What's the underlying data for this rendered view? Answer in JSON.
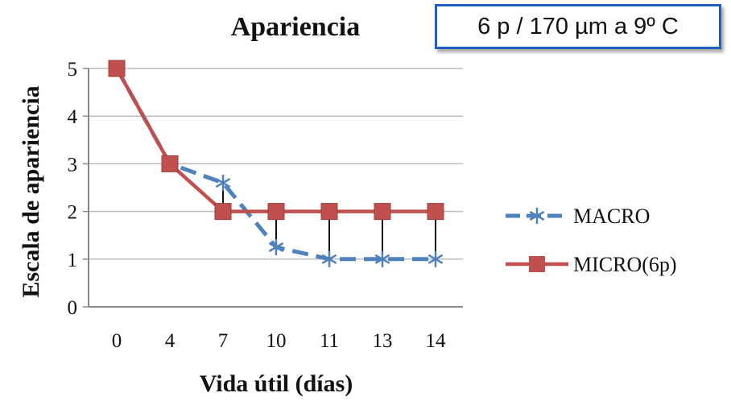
{
  "condition_label": "6 p / 170 µm a 9º C",
  "chart_data": {
    "type": "line",
    "title": "Apariencia",
    "xlabel": "Vida útil (días)",
    "ylabel": "Escala de apariencia",
    "categories": [
      "0",
      "4",
      "7",
      "10",
      "11",
      "13",
      "14"
    ],
    "ylim": [
      0,
      5
    ],
    "yticks": [
      "0",
      "1",
      "2",
      "3",
      "4",
      "5"
    ],
    "grid": "horizontal",
    "legend_position": "right",
    "series": [
      {
        "name": "MACRO",
        "values": [
          5,
          3,
          2.6,
          1.25,
          1,
          1,
          1
        ],
        "color": "#4f81bd",
        "marker": "asterisk",
        "line": "dashed"
      },
      {
        "name": "MICRO(6p)",
        "values": [
          5,
          3,
          2,
          2,
          2,
          2,
          2
        ],
        "color": "#c0504d",
        "marker": "square",
        "line": "solid"
      }
    ],
    "error_bars": "black vertical lines between series at x = 7, 10, 11, 13, 14"
  }
}
